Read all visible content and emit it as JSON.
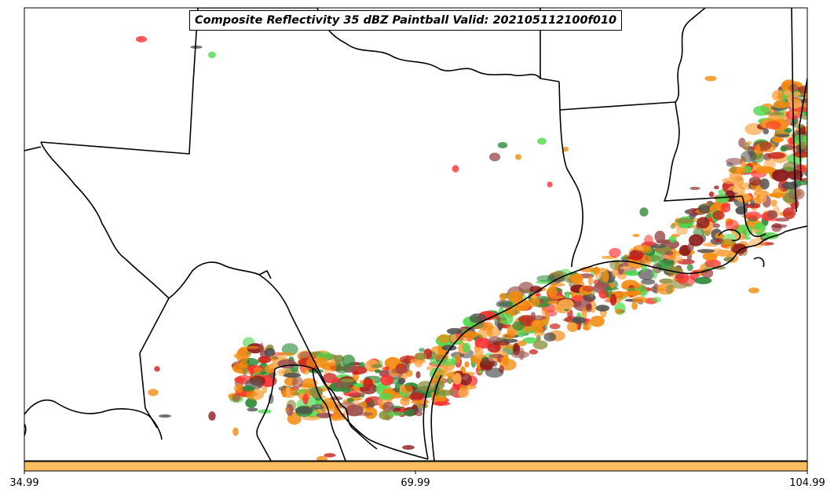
{
  "title": "Composite Reflectivity 35 dBZ Paintball Valid: 202105112100f010",
  "colorbar": {
    "ticks": [
      "34.99",
      "69.99",
      "104.99"
    ],
    "fill_color": "#ffbf60"
  },
  "paint_colors": {
    "orange": "#f28c10",
    "light_orange": "#ffa94d",
    "red": "#ff3030",
    "dark_red": "#c8201a",
    "maroon": "#8b1a1a",
    "brown": "#9c5050",
    "olive": "#8c8c3c",
    "green": "#2e8b3a",
    "light_green": "#4cd84c",
    "gray": "#505050"
  }
}
